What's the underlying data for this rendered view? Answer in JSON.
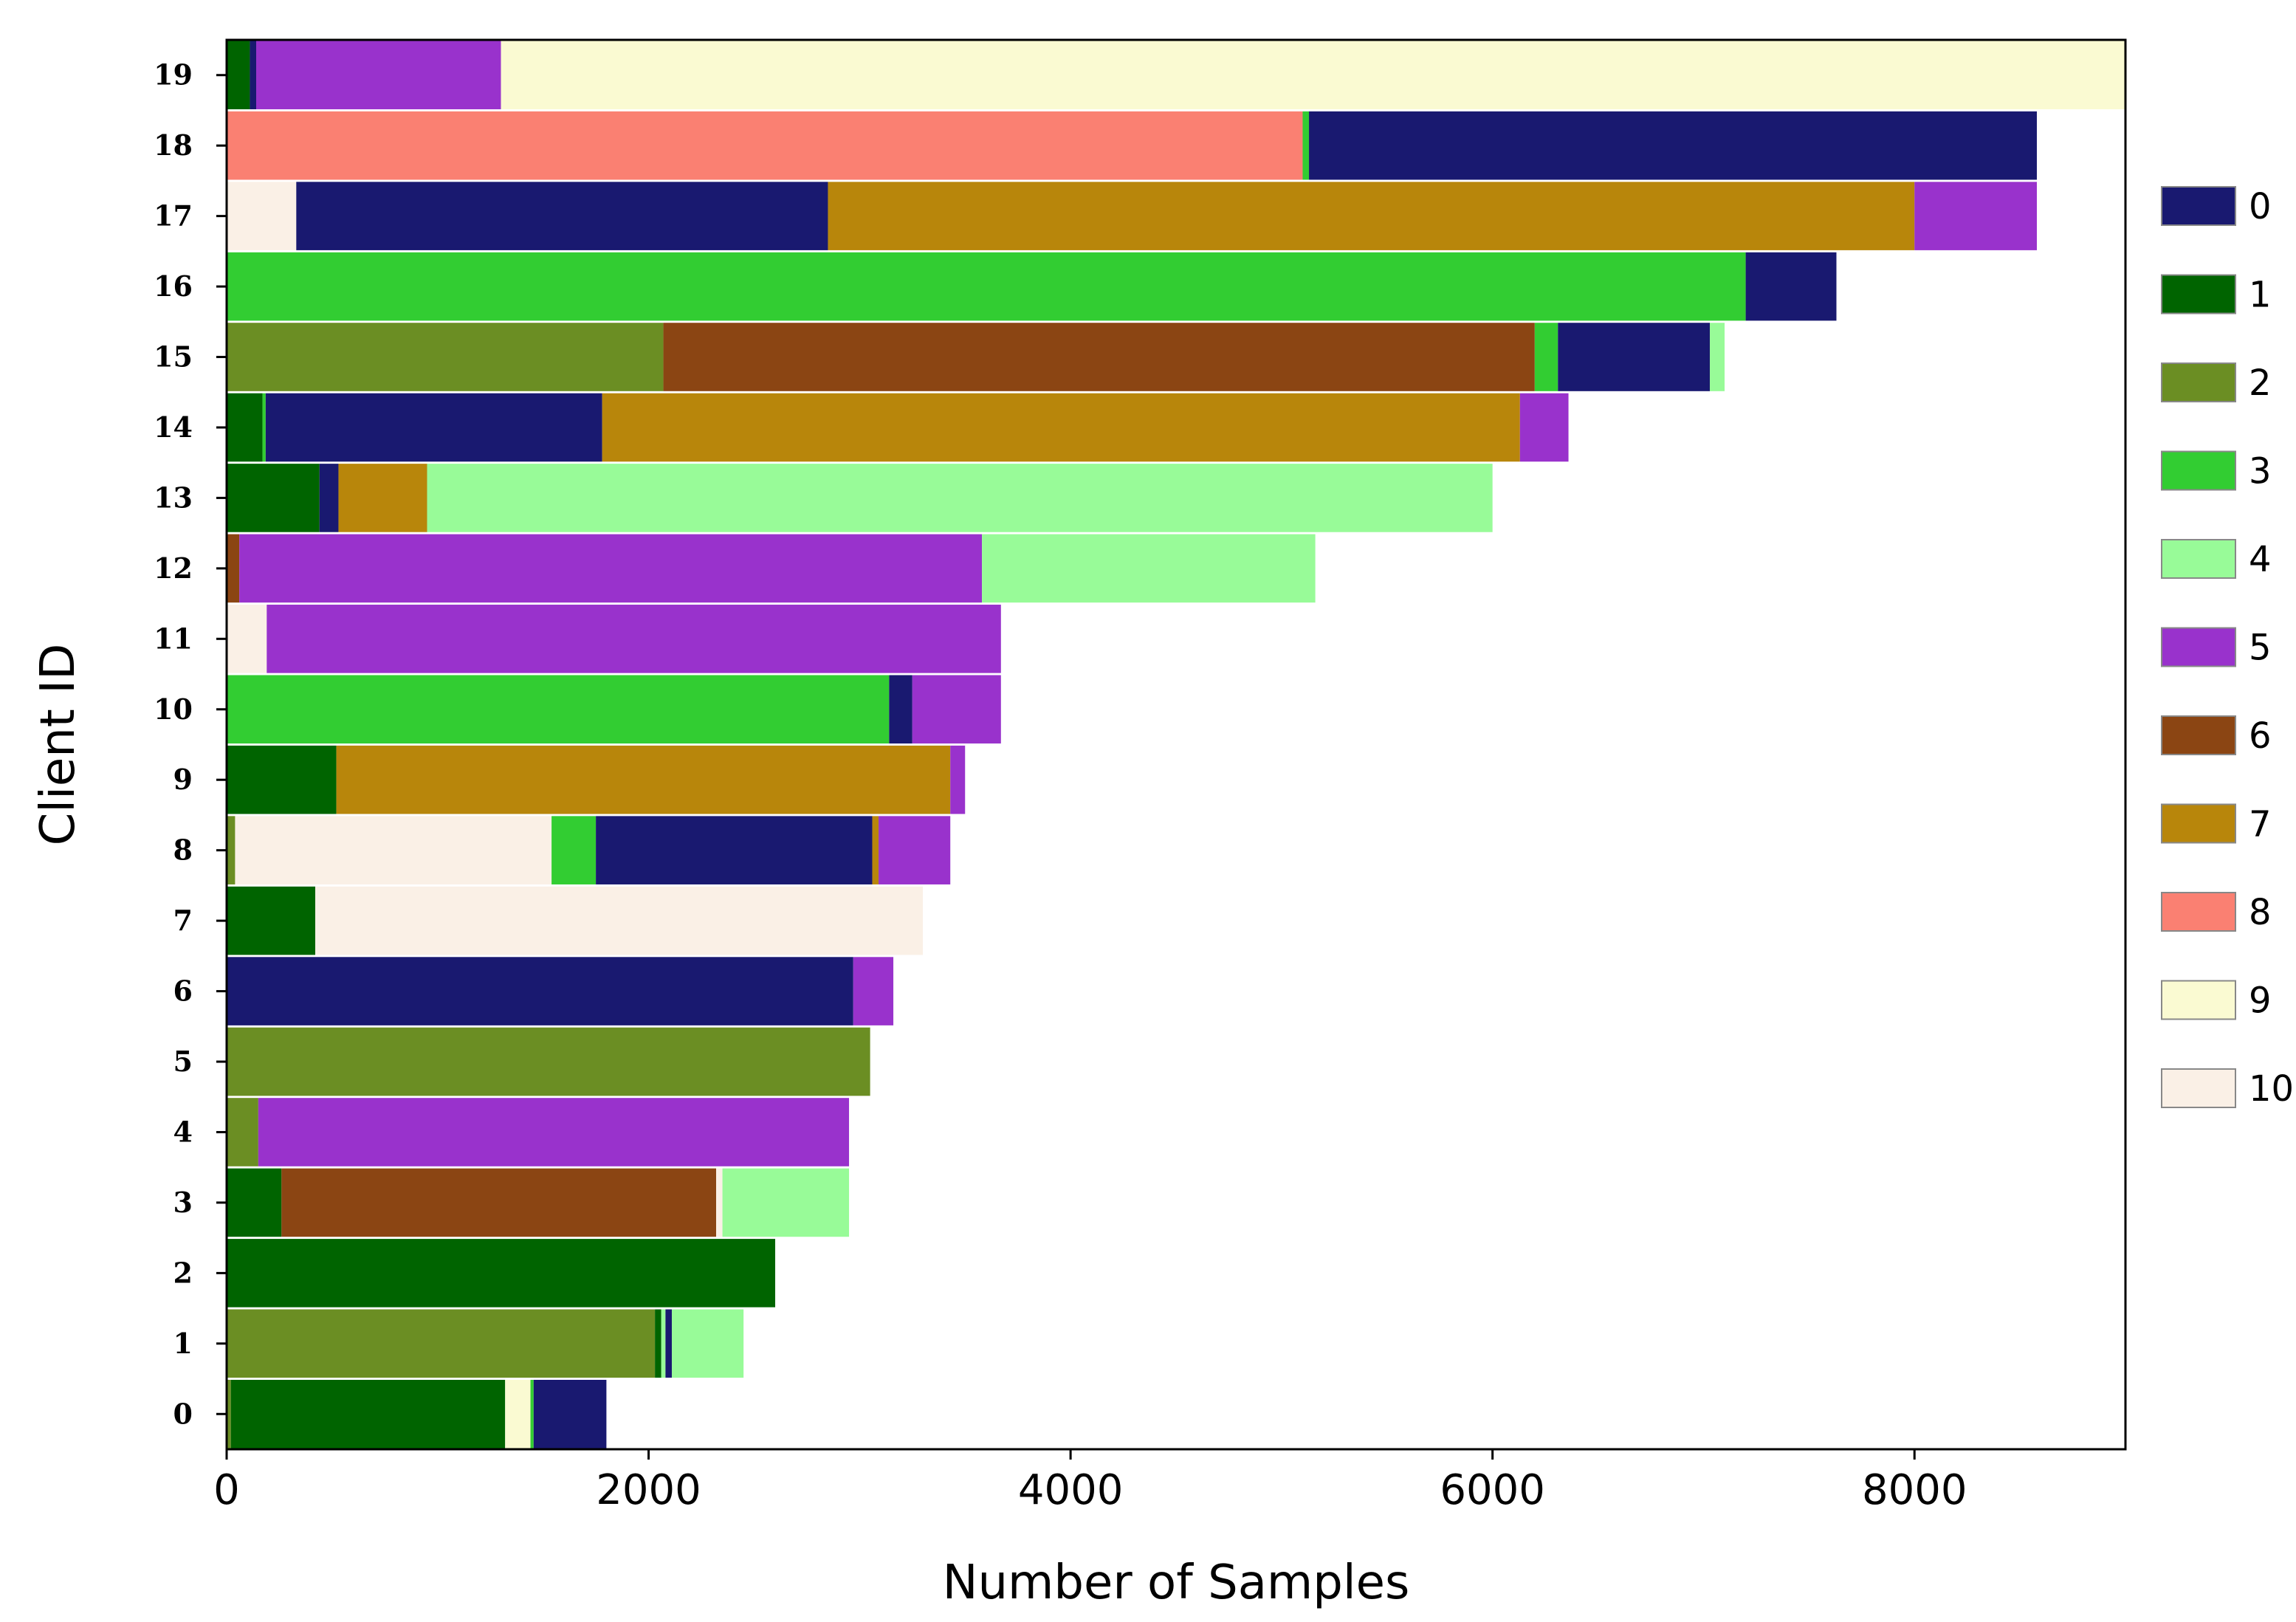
{
  "chart_data": {
    "type": "bar",
    "orientation": "horizontal",
    "stacked": true,
    "title": "",
    "xlabel": "Number of Samples",
    "ylabel": "Client ID",
    "xlim": [
      0,
      9000
    ],
    "xticks": [
      0,
      2000,
      4000,
      6000,
      8000
    ],
    "grid": false,
    "legend_position": "right",
    "categories": [
      "0",
      "1",
      "2",
      "3",
      "4",
      "5",
      "6",
      "7",
      "8",
      "9",
      "10",
      "11",
      "12",
      "13",
      "14",
      "15",
      "16",
      "17",
      "18",
      "19"
    ],
    "series": [
      {
        "name": "0",
        "color": "#191970"
      },
      {
        "name": "1",
        "color": "#006400"
      },
      {
        "name": "2",
        "color": "#6b8e23"
      },
      {
        "name": "3",
        "color": "#32cd32"
      },
      {
        "name": "4",
        "color": "#98fb98"
      },
      {
        "name": "5",
        "color": "#9932cc"
      },
      {
        "name": "6",
        "color": "#8b4513"
      },
      {
        "name": "7",
        "color": "#b8860b"
      },
      {
        "name": "8",
        "color": "#fa8072"
      },
      {
        "name": "9",
        "color": "#fafad2"
      },
      {
        "name": "10",
        "color": "#faf0e6"
      }
    ],
    "bars": [
      {
        "client": "0",
        "segments": [
          {
            "label": 2,
            "value": 20
          },
          {
            "label": 1,
            "value": 1300
          },
          {
            "label": 9,
            "value": 120
          },
          {
            "label": 3,
            "value": 15
          },
          {
            "label": 0,
            "value": 345
          }
        ]
      },
      {
        "client": "1",
        "segments": [
          {
            "label": 2,
            "value": 2030
          },
          {
            "label": 1,
            "value": 30
          },
          {
            "label": 4,
            "value": 20
          },
          {
            "label": 0,
            "value": 30
          },
          {
            "label": 4,
            "value": 340
          }
        ]
      },
      {
        "client": "2",
        "segments": [
          {
            "label": 1,
            "value": 2600
          }
        ]
      },
      {
        "client": "3",
        "segments": [
          {
            "label": 1,
            "value": 260
          },
          {
            "label": 6,
            "value": 2060
          },
          {
            "label": 10,
            "value": 30
          },
          {
            "label": 4,
            "value": 600
          }
        ]
      },
      {
        "client": "4",
        "segments": [
          {
            "label": 2,
            "value": 150
          },
          {
            "label": 5,
            "value": 2800
          }
        ]
      },
      {
        "client": "5",
        "segments": [
          {
            "label": 2,
            "value": 3050
          }
        ]
      },
      {
        "client": "6",
        "segments": [
          {
            "label": 0,
            "value": 2970
          },
          {
            "label": 5,
            "value": 190
          }
        ]
      },
      {
        "client": "7",
        "segments": [
          {
            "label": 1,
            "value": 420
          },
          {
            "label": 10,
            "value": 2880
          }
        ]
      },
      {
        "client": "8",
        "segments": [
          {
            "label": 2,
            "value": 40
          },
          {
            "label": 10,
            "value": 1500
          },
          {
            "label": 3,
            "value": 210
          },
          {
            "label": 0,
            "value": 1310
          },
          {
            "label": 7,
            "value": 30
          },
          {
            "label": 5,
            "value": 340
          }
        ]
      },
      {
        "client": "9",
        "segments": [
          {
            "label": 1,
            "value": 520
          },
          {
            "label": 7,
            "value": 2910
          },
          {
            "label": 5,
            "value": 70
          }
        ]
      },
      {
        "client": "10",
        "segments": [
          {
            "label": 3,
            "value": 3140
          },
          {
            "label": 0,
            "value": 110
          },
          {
            "label": 5,
            "value": 420
          }
        ]
      },
      {
        "client": "11",
        "segments": [
          {
            "label": 10,
            "value": 190
          },
          {
            "label": 5,
            "value": 3480
          }
        ]
      },
      {
        "client": "12",
        "segments": [
          {
            "label": 6,
            "value": 60
          },
          {
            "label": 5,
            "value": 3520
          },
          {
            "label": 4,
            "value": 1580
          }
        ]
      },
      {
        "client": "13",
        "segments": [
          {
            "label": 1,
            "value": 440
          },
          {
            "label": 0,
            "value": 90
          },
          {
            "label": 7,
            "value": 420
          },
          {
            "label": 4,
            "value": 5050
          }
        ]
      },
      {
        "client": "14",
        "segments": [
          {
            "label": 1,
            "value": 170
          },
          {
            "label": 3,
            "value": 15
          },
          {
            "label": 0,
            "value": 1595
          },
          {
            "label": 7,
            "value": 4350
          },
          {
            "label": 5,
            "value": 230
          }
        ]
      },
      {
        "client": "15",
        "segments": [
          {
            "label": 2,
            "value": 2070
          },
          {
            "label": 6,
            "value": 4130
          },
          {
            "label": 3,
            "value": 110
          },
          {
            "label": 0,
            "value": 720
          },
          {
            "label": 4,
            "value": 70
          }
        ]
      },
      {
        "client": "16",
        "segments": [
          {
            "label": 3,
            "value": 7200
          },
          {
            "label": 0,
            "value": 430
          }
        ]
      },
      {
        "client": "17",
        "segments": [
          {
            "label": 10,
            "value": 330
          },
          {
            "label": 0,
            "value": 2520
          },
          {
            "label": 7,
            "value": 5150
          },
          {
            "label": 5,
            "value": 580
          }
        ]
      },
      {
        "client": "18",
        "segments": [
          {
            "label": 8,
            "value": 5100
          },
          {
            "label": 3,
            "value": 30
          },
          {
            "label": 0,
            "value": 3450
          }
        ]
      },
      {
        "client": "19",
        "segments": [
          {
            "label": 1,
            "value": 110
          },
          {
            "label": 0,
            "value": 30
          },
          {
            "label": 5,
            "value": 1160
          },
          {
            "label": 9,
            "value": 7700
          }
        ]
      }
    ]
  }
}
